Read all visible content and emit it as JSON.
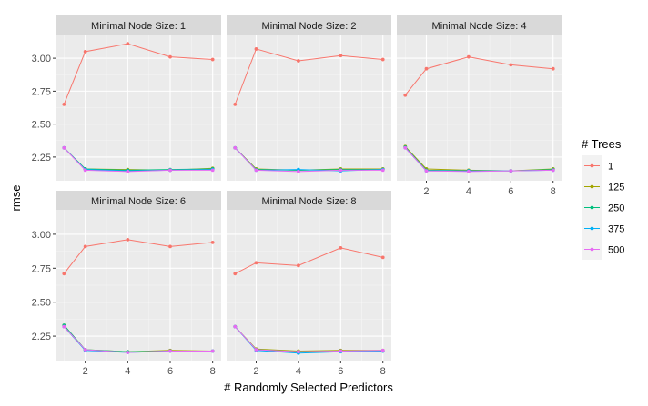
{
  "chart_data": {
    "type": "line",
    "xlabel": "# Randomly Selected Predictors",
    "ylabel": "rmse",
    "x": [
      1,
      2,
      4,
      6,
      8
    ],
    "xlim": [
      0.6,
      8.4
    ],
    "ylim": [
      2.07,
      3.18
    ],
    "x_ticks": [
      2,
      4,
      6,
      8
    ],
    "y_ticks": [
      2.25,
      2.5,
      2.75,
      3.0
    ],
    "y_tick_labels": [
      "2.25",
      "2.50",
      "2.75",
      "3.00"
    ],
    "grid": true,
    "legend": {
      "title": "# Trees",
      "position": "right",
      "entries": [
        {
          "label": "1",
          "color": "#F8766D"
        },
        {
          "label": "125",
          "color": "#A3A500"
        },
        {
          "label": "250",
          "color": "#00BF7D"
        },
        {
          "label": "375",
          "color": "#00B0F6"
        },
        {
          "label": "500",
          "color": "#E76BF3"
        }
      ]
    },
    "panels": [
      {
        "title": "Minimal Node Size: 1",
        "series": [
          {
            "name": "1",
            "values": [
              2.65,
              3.05,
              3.11,
              3.01,
              2.99
            ]
          },
          {
            "name": "125",
            "values": [
              2.32,
              2.16,
              2.155,
              2.15,
              2.165
            ]
          },
          {
            "name": "250",
            "values": [
              2.32,
              2.16,
              2.15,
              2.155,
              2.16
            ]
          },
          {
            "name": "375",
            "values": [
              2.32,
              2.155,
              2.145,
              2.15,
              2.155
            ]
          },
          {
            "name": "500",
            "values": [
              2.32,
              2.15,
              2.14,
              2.15,
              2.15
            ]
          }
        ]
      },
      {
        "title": "Minimal Node Size: 2",
        "series": [
          {
            "name": "1",
            "values": [
              2.65,
              3.07,
              2.98,
              3.02,
              2.99
            ]
          },
          {
            "name": "125",
            "values": [
              2.32,
              2.16,
              2.15,
              2.16,
              2.16
            ]
          },
          {
            "name": "250",
            "values": [
              2.32,
              2.155,
              2.15,
              2.155,
              2.155
            ]
          },
          {
            "name": "375",
            "values": [
              2.32,
              2.15,
              2.155,
              2.145,
              2.155
            ]
          },
          {
            "name": "500",
            "values": [
              2.32,
              2.15,
              2.14,
              2.15,
              2.15
            ]
          }
        ]
      },
      {
        "title": "Minimal Node Size: 4",
        "series": [
          {
            "name": "1",
            "values": [
              2.72,
              2.92,
              3.01,
              2.95,
              2.92
            ]
          },
          {
            "name": "125",
            "values": [
              2.33,
              2.16,
              2.15,
              2.145,
              2.16
            ]
          },
          {
            "name": "250",
            "values": [
              2.325,
              2.15,
              2.145,
              2.145,
              2.155
            ]
          },
          {
            "name": "375",
            "values": [
              2.32,
              2.145,
              2.145,
              2.145,
              2.15
            ]
          },
          {
            "name": "500",
            "values": [
              2.32,
              2.145,
              2.14,
              2.145,
              2.15
            ]
          }
        ]
      },
      {
        "title": "Minimal Node Size: 6",
        "series": [
          {
            "name": "1",
            "values": [
              2.71,
              2.91,
              2.96,
              2.91,
              2.94
            ]
          },
          {
            "name": "125",
            "values": [
              2.33,
              2.15,
              2.135,
              2.145,
              2.14
            ]
          },
          {
            "name": "250",
            "values": [
              2.33,
              2.15,
              2.135,
              2.14,
              2.14
            ]
          },
          {
            "name": "375",
            "values": [
              2.32,
              2.145,
              2.13,
              2.14,
              2.14
            ]
          },
          {
            "name": "500",
            "values": [
              2.32,
              2.15,
              2.13,
              2.14,
              2.14
            ]
          }
        ]
      },
      {
        "title": "Minimal Node Size: 8",
        "series": [
          {
            "name": "1",
            "values": [
              2.71,
              2.79,
              2.77,
              2.9,
              2.83
            ]
          },
          {
            "name": "125",
            "values": [
              2.32,
              2.155,
              2.14,
              2.145,
              2.145
            ]
          },
          {
            "name": "250",
            "values": [
              2.32,
              2.15,
              2.135,
              2.14,
              2.14
            ]
          },
          {
            "name": "375",
            "values": [
              2.32,
              2.145,
              2.125,
              2.135,
              2.14
            ]
          },
          {
            "name": "500",
            "values": [
              2.32,
              2.15,
              2.135,
              2.14,
              2.145
            ]
          }
        ]
      }
    ]
  }
}
